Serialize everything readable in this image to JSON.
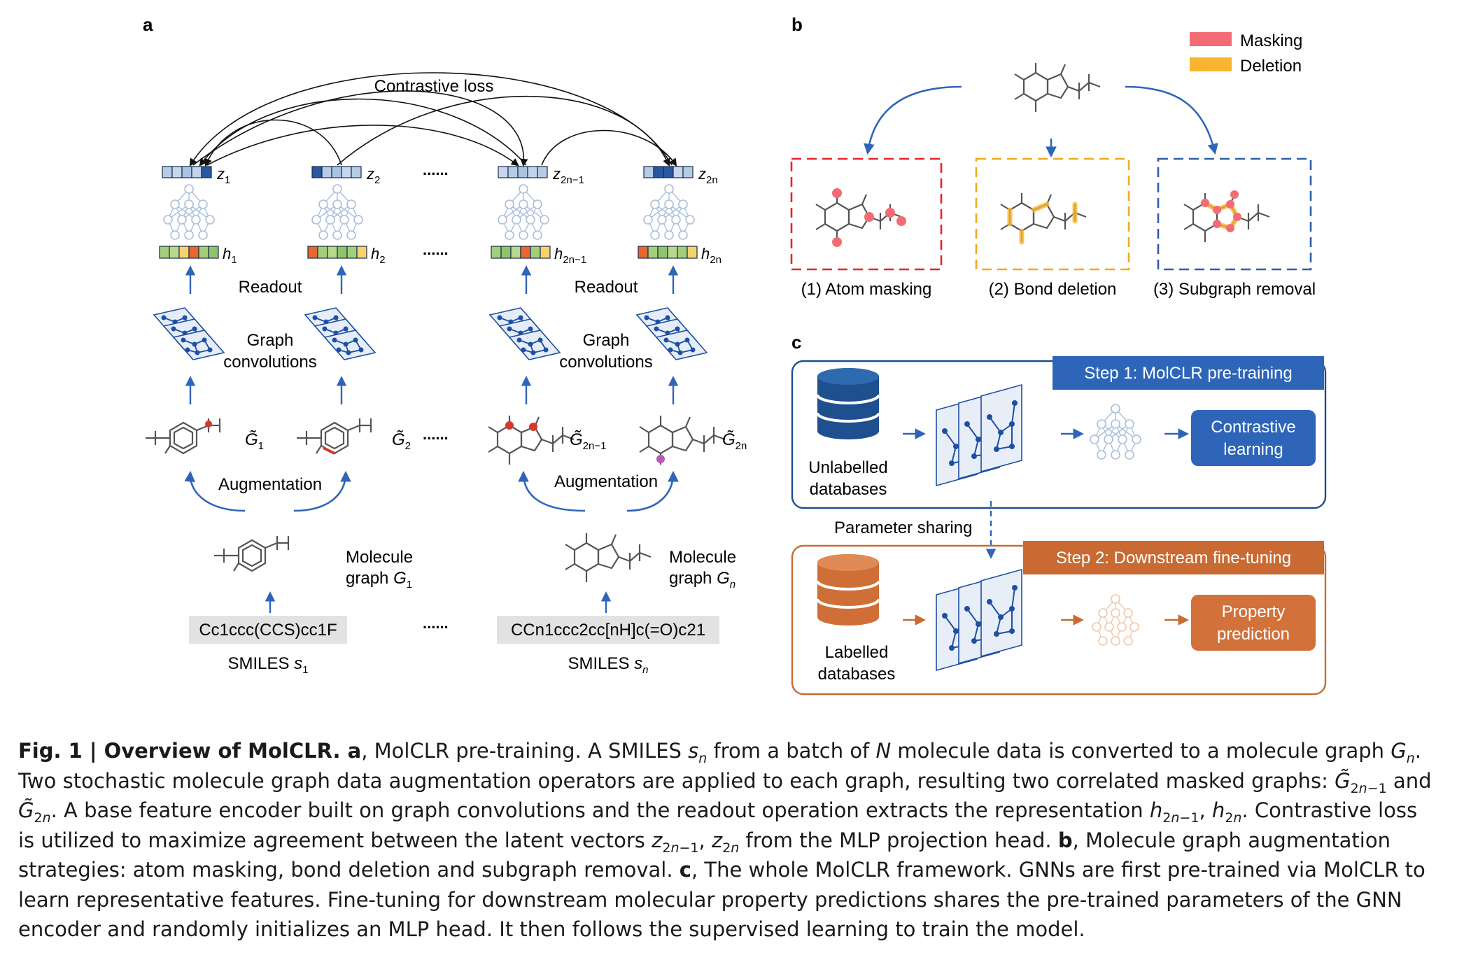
{
  "panel_a": {
    "letter": "a",
    "contrastive_loss": "Contrastive loss",
    "z_labels": [
      {
        "base": "z",
        "sub": "1"
      },
      {
        "base": "z",
        "sub": "2"
      },
      {
        "base": "z",
        "sub": "2n−1"
      },
      {
        "base": "z",
        "sub": "2n"
      }
    ],
    "h_labels": [
      {
        "base": "h",
        "sub": "1"
      },
      {
        "base": "h",
        "sub": "2"
      },
      {
        "base": "h",
        "sub": "2n−1"
      },
      {
        "base": "h",
        "sub": "2n"
      }
    ],
    "g_labels": [
      {
        "base": "G̃",
        "sub": "1"
      },
      {
        "base": "G̃",
        "sub": "2"
      },
      {
        "base": "G̃",
        "sub": "2n−1"
      },
      {
        "base": "G̃",
        "sub": "2n"
      }
    ],
    "ellipsis": "......",
    "readout": "Readout",
    "graph_conv_line1": "Graph",
    "graph_conv_line2": "convolutions",
    "augmentation": "Augmentation",
    "molecule_graph_line1": "Molecule",
    "molecule_graph_line2_left": {
      "text": "graph ",
      "var": "G",
      "sub": "1"
    },
    "molecule_graph_line2_right": {
      "text": "graph ",
      "var": "G",
      "sub": "n"
    },
    "smiles_left": "Cc1ccc(CCS)cc1F",
    "smiles_right": "CCn1ccc2cc[nH]c(=O)c21",
    "smiles_label_left": {
      "text": "SMILES ",
      "var": "s",
      "sub": "1"
    },
    "smiles_label_right": {
      "text": "SMILES ",
      "var": "s",
      "sub": "n"
    }
  },
  "panel_b": {
    "letter": "b",
    "legend": [
      {
        "label": "Masking",
        "color": "#f46b73"
      },
      {
        "label": "Deletion",
        "color": "#f8b530"
      }
    ],
    "boxes": [
      {
        "label": "(1) Atom masking",
        "color": "#e8242a"
      },
      {
        "label": "(2) Bond deletion",
        "color": "#f2a823"
      },
      {
        "label": "(3) Subgraph removal",
        "color": "#2d5fa8"
      }
    ]
  },
  "panel_c": {
    "letter": "c",
    "step1": "Step 1: MolCLR pre-training",
    "step2": "Step 2: Downstream fine-tuning",
    "unlabelled_line1": "Unlabelled",
    "unlabelled_line2": "databases",
    "labelled_line1": "Labelled",
    "labelled_line2": "databases",
    "contrastive_line1": "Contrastive",
    "contrastive_line2": "learning",
    "property_line1": "Property",
    "property_line2": "prediction",
    "parameter_sharing": "Parameter sharing"
  },
  "colors": {
    "arrow_blue": "#2e65b8",
    "dark_blue": "#1f4e8c",
    "orange": "#c96a32",
    "node_blue": "#1e4fa3"
  }
}
